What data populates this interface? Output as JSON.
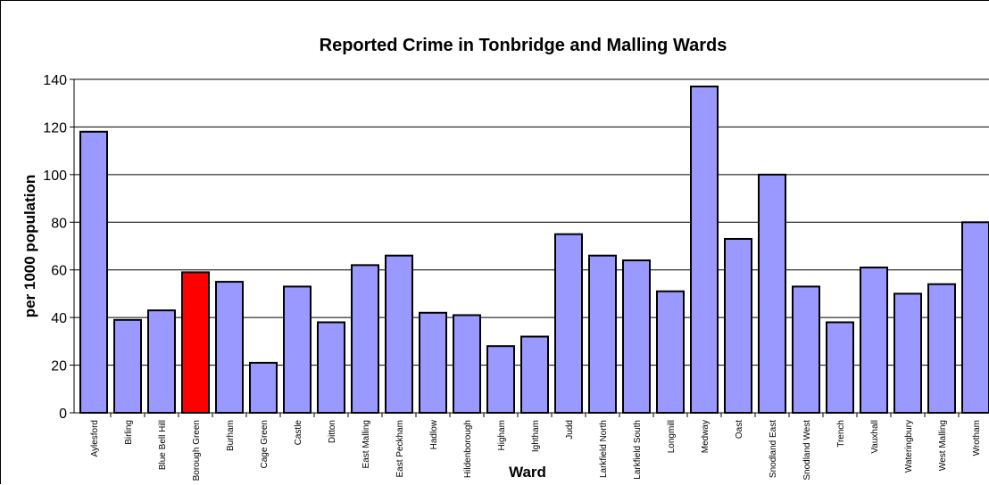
{
  "chart_data": {
    "type": "bar",
    "title": "Reported Crime in Tonbridge and Malling Wards",
    "xlabel": "Ward",
    "ylabel": "per 1000 population",
    "ylim": [
      0,
      140
    ],
    "yticks": [
      0,
      20,
      40,
      60,
      80,
      100,
      120,
      140
    ],
    "grid": true,
    "categories": [
      "Aylesford",
      "Birling",
      "Blue Bell Hill",
      "Borough Green",
      "Burham",
      "Cage Green",
      "Castle",
      "Ditton",
      "East Malling",
      "East Peckham",
      "Hadlow",
      "Hildenborough",
      "Higham",
      "Ightham",
      "Judd",
      "Larkfield North",
      "Larkfield South",
      "Longmill",
      "Medway",
      "Oast",
      "Snodland East",
      "Snodland West",
      "Trench",
      "Vauxhall",
      "Wateringbury",
      "West Malling",
      "Wrotham"
    ],
    "values": [
      118,
      39,
      43,
      59,
      55,
      21,
      53,
      38,
      62,
      66,
      42,
      41,
      28,
      32,
      75,
      66,
      64,
      51,
      137,
      73,
      100,
      53,
      38,
      61,
      50,
      54,
      80
    ],
    "highlight_category": "Borough Green",
    "colors": {
      "bar": "#9999FF",
      "highlight": "#FF0000",
      "outline": "#000000",
      "grid": "#000000"
    }
  }
}
